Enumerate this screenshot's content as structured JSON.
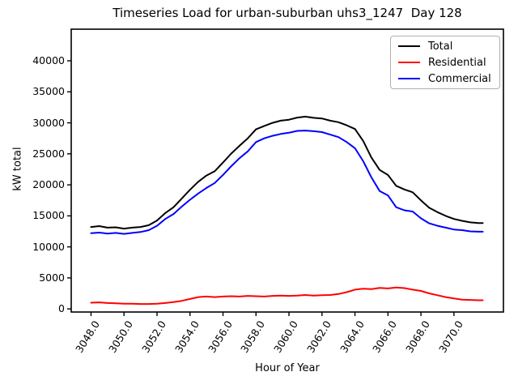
{
  "chart_data": {
    "type": "line",
    "title": "Timeseries Load for urban-suburban uhs3_1247  Day 128",
    "xlabel": "Hour of Year",
    "ylabel": "kW total",
    "xlim": [
      3046.8,
      3073.0
    ],
    "ylim": [
      -500,
      45100
    ],
    "grid": false,
    "legend_position": "upper right",
    "xticks": [
      3048,
      3050,
      3052,
      3054,
      3056,
      3058,
      3060,
      3062,
      3064,
      3066,
      3068,
      3070
    ],
    "xtick_labels": [
      "3048.0",
      "3050.0",
      "3052.0",
      "3054.0",
      "3056.0",
      "3058.0",
      "3060.0",
      "3062.0",
      "3064.0",
      "3066.0",
      "3068.0",
      "3070.0"
    ],
    "yticks": [
      0,
      5000,
      10000,
      15000,
      20000,
      25000,
      30000,
      35000,
      40000
    ],
    "ytick_labels": [
      "0",
      "5000",
      "10000",
      "15000",
      "20000",
      "25000",
      "30000",
      "35000",
      "40000"
    ],
    "x": [
      3048.0,
      3048.5,
      3049.0,
      3049.5,
      3050.0,
      3050.5,
      3051.0,
      3051.5,
      3052.0,
      3052.5,
      3053.0,
      3053.5,
      3054.0,
      3054.5,
      3055.0,
      3055.5,
      3056.0,
      3056.5,
      3057.0,
      3057.5,
      3058.0,
      3058.5,
      3059.0,
      3059.5,
      3060.0,
      3060.5,
      3061.0,
      3061.5,
      3062.0,
      3062.5,
      3063.0,
      3063.5,
      3064.0,
      3064.5,
      3065.0,
      3065.5,
      3066.0,
      3066.5,
      3067.0,
      3067.5,
      3068.0,
      3068.5,
      3069.0,
      3069.5,
      3070.0,
      3070.5,
      3071.0,
      3071.5,
      3071.75
    ],
    "series": [
      {
        "name": "Total",
        "color": "#000000",
        "values": [
          13200,
          13350,
          13100,
          13150,
          12950,
          13100,
          13200,
          13500,
          14250,
          15450,
          16400,
          17800,
          19200,
          20500,
          21500,
          22200,
          23600,
          25050,
          26300,
          27500,
          28950,
          29500,
          30000,
          30350,
          30500,
          30850,
          31000,
          30800,
          30700,
          30350,
          30100,
          29600,
          29000,
          27050,
          24400,
          22400,
          21600,
          19850,
          19250,
          18800,
          17500,
          16300,
          15600,
          15000,
          14500,
          14200,
          13950,
          13850,
          13850
        ]
      },
      {
        "name": "Residential",
        "color": "#ff0000",
        "values": [
          1000,
          1050,
          950,
          900,
          850,
          850,
          800,
          800,
          850,
          950,
          1100,
          1300,
          1600,
          1900,
          2000,
          1900,
          2000,
          2050,
          2000,
          2100,
          2050,
          2000,
          2100,
          2150,
          2100,
          2150,
          2250,
          2150,
          2200,
          2250,
          2400,
          2700,
          3100,
          3250,
          3200,
          3400,
          3300,
          3450,
          3350,
          3100,
          2900,
          2500,
          2200,
          1900,
          1700,
          1500,
          1450,
          1400,
          1400
        ]
      },
      {
        "name": "Commercial",
        "color": "#0000ff",
        "values": [
          12200,
          12300,
          12150,
          12250,
          12100,
          12250,
          12400,
          12700,
          13400,
          14500,
          15300,
          16500,
          17600,
          18600,
          19500,
          20300,
          21600,
          23000,
          24300,
          25400,
          26900,
          27500,
          27900,
          28200,
          28400,
          28700,
          28750,
          28650,
          28500,
          28100,
          27700,
          26900,
          25900,
          23800,
          21200,
          19000,
          18300,
          16400,
          15900,
          15700,
          14600,
          13800,
          13400,
          13100,
          12800,
          12700,
          12500,
          12450,
          12450
        ]
      }
    ]
  }
}
